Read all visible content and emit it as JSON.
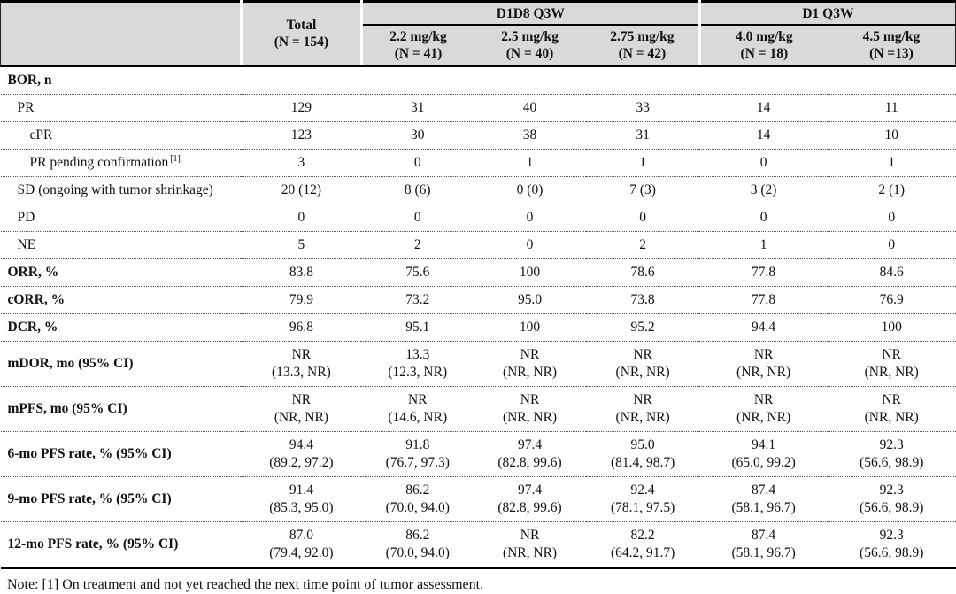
{
  "table": {
    "header": {
      "corner": "",
      "total": {
        "line1": "Total",
        "line2": "(N = 154)"
      },
      "groups": [
        {
          "label": "D1D8 Q3W",
          "columns": [
            {
              "dose": "2.2 mg/kg",
              "n": "(N = 41)"
            },
            {
              "dose": "2.5 mg/kg",
              "n": "(N = 40)"
            },
            {
              "dose": "2.75 mg/kg",
              "n": "(N = 42)"
            }
          ]
        },
        {
          "label": "D1 Q3W",
          "columns": [
            {
              "dose": "4.0 mg/kg",
              "n": "(N = 18)"
            },
            {
              "dose": "4.5 mg/kg",
              "n": "(N =13)"
            }
          ]
        }
      ]
    },
    "rows": [
      {
        "label": "BOR, n",
        "style": "section",
        "values": [
          "",
          "",
          "",
          "",
          "",
          ""
        ]
      },
      {
        "label": "PR",
        "style": "l1",
        "values": [
          "129",
          "31",
          "40",
          "33",
          "14",
          "11"
        ]
      },
      {
        "label": "cPR",
        "style": "l2",
        "values": [
          "123",
          "30",
          "38",
          "31",
          "14",
          "10"
        ]
      },
      {
        "label": "PR pending confirmation",
        "sup": "[1]",
        "style": "l2",
        "values": [
          "3",
          "0",
          "1",
          "1",
          "0",
          "1"
        ]
      },
      {
        "label": "SD (ongoing with tumor shrinkage)",
        "style": "l1",
        "values": [
          "20 (12)",
          "8 (6)",
          "0 (0)",
          "7 (3)",
          "3 (2)",
          "2 (1)"
        ]
      },
      {
        "label": "PD",
        "style": "l1",
        "values": [
          "0",
          "0",
          "0",
          "0",
          "0",
          "0"
        ]
      },
      {
        "label": "NE",
        "style": "l1",
        "values": [
          "5",
          "2",
          "0",
          "2",
          "1",
          "0"
        ]
      },
      {
        "label": "ORR, %",
        "style": "bold",
        "values": [
          "83.8",
          "75.6",
          "100",
          "78.6",
          "77.8",
          "84.6"
        ]
      },
      {
        "label": "cORR, %",
        "style": "bold",
        "values": [
          "79.9",
          "73.2",
          "95.0",
          "73.8",
          "77.8",
          "76.9"
        ]
      },
      {
        "label": "DCR, %",
        "style": "bold",
        "values": [
          "96.8",
          "95.1",
          "100",
          "95.2",
          "94.4",
          "100"
        ]
      },
      {
        "label": "mDOR, mo (95% CI)",
        "style": "bold",
        "values": [
          [
            "NR",
            "(13.3, NR)"
          ],
          [
            "13.3",
            "(12.3, NR)"
          ],
          [
            "NR",
            "(NR, NR)"
          ],
          [
            "NR",
            "(NR, NR)"
          ],
          [
            "NR",
            "(NR, NR)"
          ],
          [
            "NR",
            "(NR, NR)"
          ]
        ]
      },
      {
        "label": "mPFS, mo (95% CI)",
        "style": "bold",
        "values": [
          [
            "NR",
            "(NR, NR)"
          ],
          [
            "NR",
            "(14.6, NR)"
          ],
          [
            "NR",
            "(NR, NR)"
          ],
          [
            "NR",
            "(NR, NR)"
          ],
          [
            "NR",
            "(NR, NR)"
          ],
          [
            "NR",
            "(NR, NR)"
          ]
        ]
      },
      {
        "label": "6-mo PFS rate, % (95% CI)",
        "style": "bold",
        "values": [
          [
            "94.4",
            "(89.2, 97.2)"
          ],
          [
            "91.8",
            "(76.7, 97.3)"
          ],
          [
            "97.4",
            "(82.8, 99.6)"
          ],
          [
            "95.0",
            "(81.4, 98.7)"
          ],
          [
            "94.1",
            "(65.0, 99.2)"
          ],
          [
            "92.3",
            "(56.6, 98.9)"
          ]
        ]
      },
      {
        "label": "9-mo PFS rate, % (95% CI)",
        "style": "bold",
        "values": [
          [
            "91.4",
            "(85.3, 95.0)"
          ],
          [
            "86.2",
            "(70.0, 94.0)"
          ],
          [
            "97.4",
            "(82.8, 99.6)"
          ],
          [
            "92.4",
            "(78.1, 97.5)"
          ],
          [
            "87.4",
            "(58.1, 96.7)"
          ],
          [
            "92.3",
            "(56.6, 98.9)"
          ]
        ]
      },
      {
        "label": "12-mo PFS rate, % (95% CI)",
        "style": "bold",
        "values": [
          [
            "87.0",
            "(79.4, 92.0)"
          ],
          [
            "86.2",
            "(70.0, 94.0)"
          ],
          [
            "NR",
            "(NR, NR)"
          ],
          [
            "82.2",
            "(64.2, 91.7)"
          ],
          [
            "87.4",
            "(58.1, 96.7)"
          ],
          [
            "92.3",
            "(56.6, 98.9)"
          ]
        ]
      }
    ],
    "note": "Note: [1] On treatment and not yet reached the next time point of tumor assessment."
  }
}
